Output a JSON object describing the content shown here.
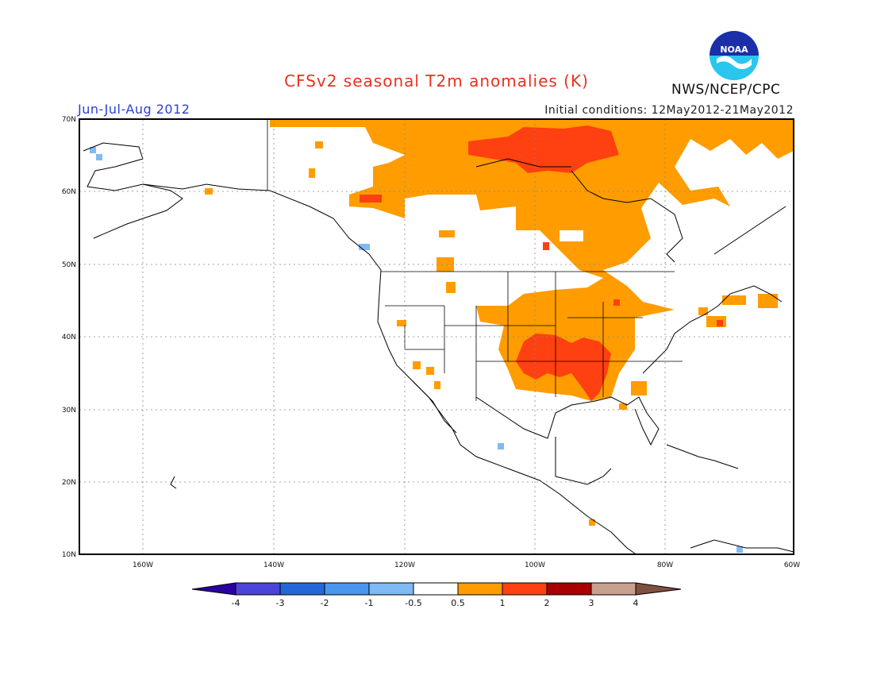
{
  "header": {
    "title": "CFSv2 seasonal T2m anomalies (K)",
    "season": "Jun-Jul-Aug 2012",
    "initial_conditions": "Initial conditions: 12May2012-21May2012",
    "agency": "NWS/NCEP/CPC",
    "logo_text": "NOAA"
  },
  "axes": {
    "lat_labels": [
      "70N",
      "60N",
      "50N",
      "40N",
      "30N",
      "20N",
      "10N"
    ],
    "lon_labels": [
      "160W",
      "140W",
      "120W",
      "100W",
      "80W",
      "60W"
    ]
  },
  "colorbar": {
    "labels": [
      "-4",
      "-3",
      "-2",
      "-1",
      "-0.5",
      "0.5",
      "1",
      "2",
      "3",
      "4"
    ],
    "colors": [
      "#2a00a0",
      "#4b44d8",
      "#2468d8",
      "#4896ee",
      "#80baf4",
      "#ffffff",
      "#ff9c00",
      "#ff4010",
      "#a80000",
      "#c8a090",
      "#805040"
    ]
  }
}
